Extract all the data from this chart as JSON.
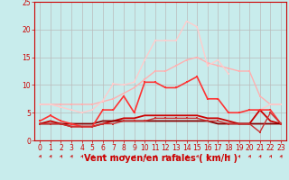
{
  "background_color": "#c8ecec",
  "grid_color": "#aadddd",
  "xlabel": "Vent moyen/en rafales ( km/h )",
  "xlim": [
    -0.5,
    23.5
  ],
  "ylim": [
    0,
    25
  ],
  "yticks": [
    0,
    5,
    10,
    15,
    20,
    25
  ],
  "xticks": [
    0,
    1,
    2,
    3,
    4,
    5,
    6,
    7,
    8,
    9,
    10,
    11,
    12,
    13,
    14,
    15,
    16,
    17,
    18,
    19,
    20,
    21,
    22,
    23
  ],
  "lines": [
    {
      "x": [
        0,
        1,
        2,
        3,
        4,
        5,
        6,
        7,
        8,
        9,
        10,
        11,
        12,
        13,
        14,
        15,
        16,
        17,
        18,
        19,
        20,
        21,
        22,
        23
      ],
      "y": [
        6.5,
        6.5,
        6.5,
        6.5,
        6.5,
        6.5,
        7.0,
        7.5,
        8.5,
        9.5,
        11.0,
        12.5,
        12.5,
        13.5,
        14.5,
        15.0,
        14.0,
        13.5,
        13.0,
        12.5,
        12.5,
        8.0,
        6.5,
        6.5
      ],
      "color": "#ffb0b0",
      "lw": 1.0,
      "marker": "s",
      "ms": 2.0
    },
    {
      "x": [
        0,
        1,
        2,
        3,
        4,
        5,
        6,
        7,
        8,
        9,
        10,
        11,
        12,
        13,
        14,
        15,
        16,
        17,
        18,
        19,
        20,
        21,
        22,
        23
      ],
      "y": [
        6.5,
        6.5,
        6.0,
        5.5,
        5.0,
        5.5,
        7.2,
        10.2,
        10.0,
        10.5,
        14.5,
        18.0,
        18.0,
        18.0,
        21.5,
        20.5,
        13.5,
        14.5,
        12.0,
        null,
        null,
        5.5,
        6.5,
        6.5
      ],
      "color": "#ffcccc",
      "lw": 1.0,
      "marker": "s",
      "ms": 2.0
    },
    {
      "x": [
        0,
        1,
        2,
        3,
        4,
        5,
        6,
        7,
        8,
        9,
        10,
        11,
        12,
        13,
        14,
        15,
        16,
        17,
        18,
        19,
        20,
        21,
        22,
        23
      ],
      "y": [
        3.5,
        4.5,
        3.5,
        3.0,
        2.5,
        2.5,
        5.5,
        5.5,
        8.0,
        5.0,
        10.5,
        10.5,
        9.5,
        9.5,
        10.5,
        11.5,
        7.5,
        7.5,
        5.0,
        5.0,
        5.5,
        5.5,
        5.5,
        3.0
      ],
      "color": "#ff3333",
      "lw": 1.2,
      "marker": "s",
      "ms": 2.0
    },
    {
      "x": [
        0,
        1,
        2,
        3,
        4,
        5,
        6,
        7,
        8,
        9,
        10,
        11,
        12,
        13,
        14,
        15,
        16,
        17,
        18,
        19,
        20,
        21,
        22,
        23
      ],
      "y": [
        3.0,
        3.5,
        3.0,
        2.5,
        2.5,
        2.5,
        3.0,
        3.5,
        4.0,
        4.0,
        4.5,
        4.5,
        4.5,
        4.5,
        4.5,
        4.5,
        4.0,
        4.0,
        3.5,
        3.0,
        3.0,
        5.5,
        3.5,
        3.0
      ],
      "color": "#cc0000",
      "lw": 1.3,
      "marker": null,
      "ms": 0
    },
    {
      "x": [
        0,
        1,
        2,
        3,
        4,
        5,
        6,
        7,
        8,
        9,
        10,
        11,
        12,
        13,
        14,
        15,
        16,
        17,
        18,
        19,
        20,
        21,
        22,
        23
      ],
      "y": [
        3.0,
        3.0,
        3.0,
        3.0,
        3.0,
        3.0,
        3.5,
        3.5,
        3.5,
        3.5,
        3.5,
        3.5,
        3.5,
        3.5,
        3.5,
        3.5,
        3.5,
        3.0,
        3.0,
        3.0,
        3.0,
        3.0,
        3.0,
        3.0
      ],
      "color": "#880000",
      "lw": 1.3,
      "marker": null,
      "ms": 0
    },
    {
      "x": [
        0,
        1,
        2,
        3,
        4,
        5,
        6,
        7,
        8,
        9,
        10,
        11,
        12,
        13,
        14,
        15,
        16,
        17,
        18,
        19,
        20,
        21,
        22,
        23
      ],
      "y": [
        3.0,
        3.0,
        3.0,
        2.5,
        2.5,
        2.5,
        3.0,
        3.0,
        3.5,
        3.5,
        3.5,
        4.0,
        4.0,
        4.0,
        4.0,
        4.0,
        3.5,
        3.5,
        3.0,
        3.0,
        3.0,
        1.5,
        5.0,
        3.0
      ],
      "color": "#cc3333",
      "lw": 1.0,
      "marker": "s",
      "ms": 2.0
    }
  ],
  "axis_color": "#cc0000",
  "xlabel_fontsize": 7,
  "tick_fontsize": 5.5
}
